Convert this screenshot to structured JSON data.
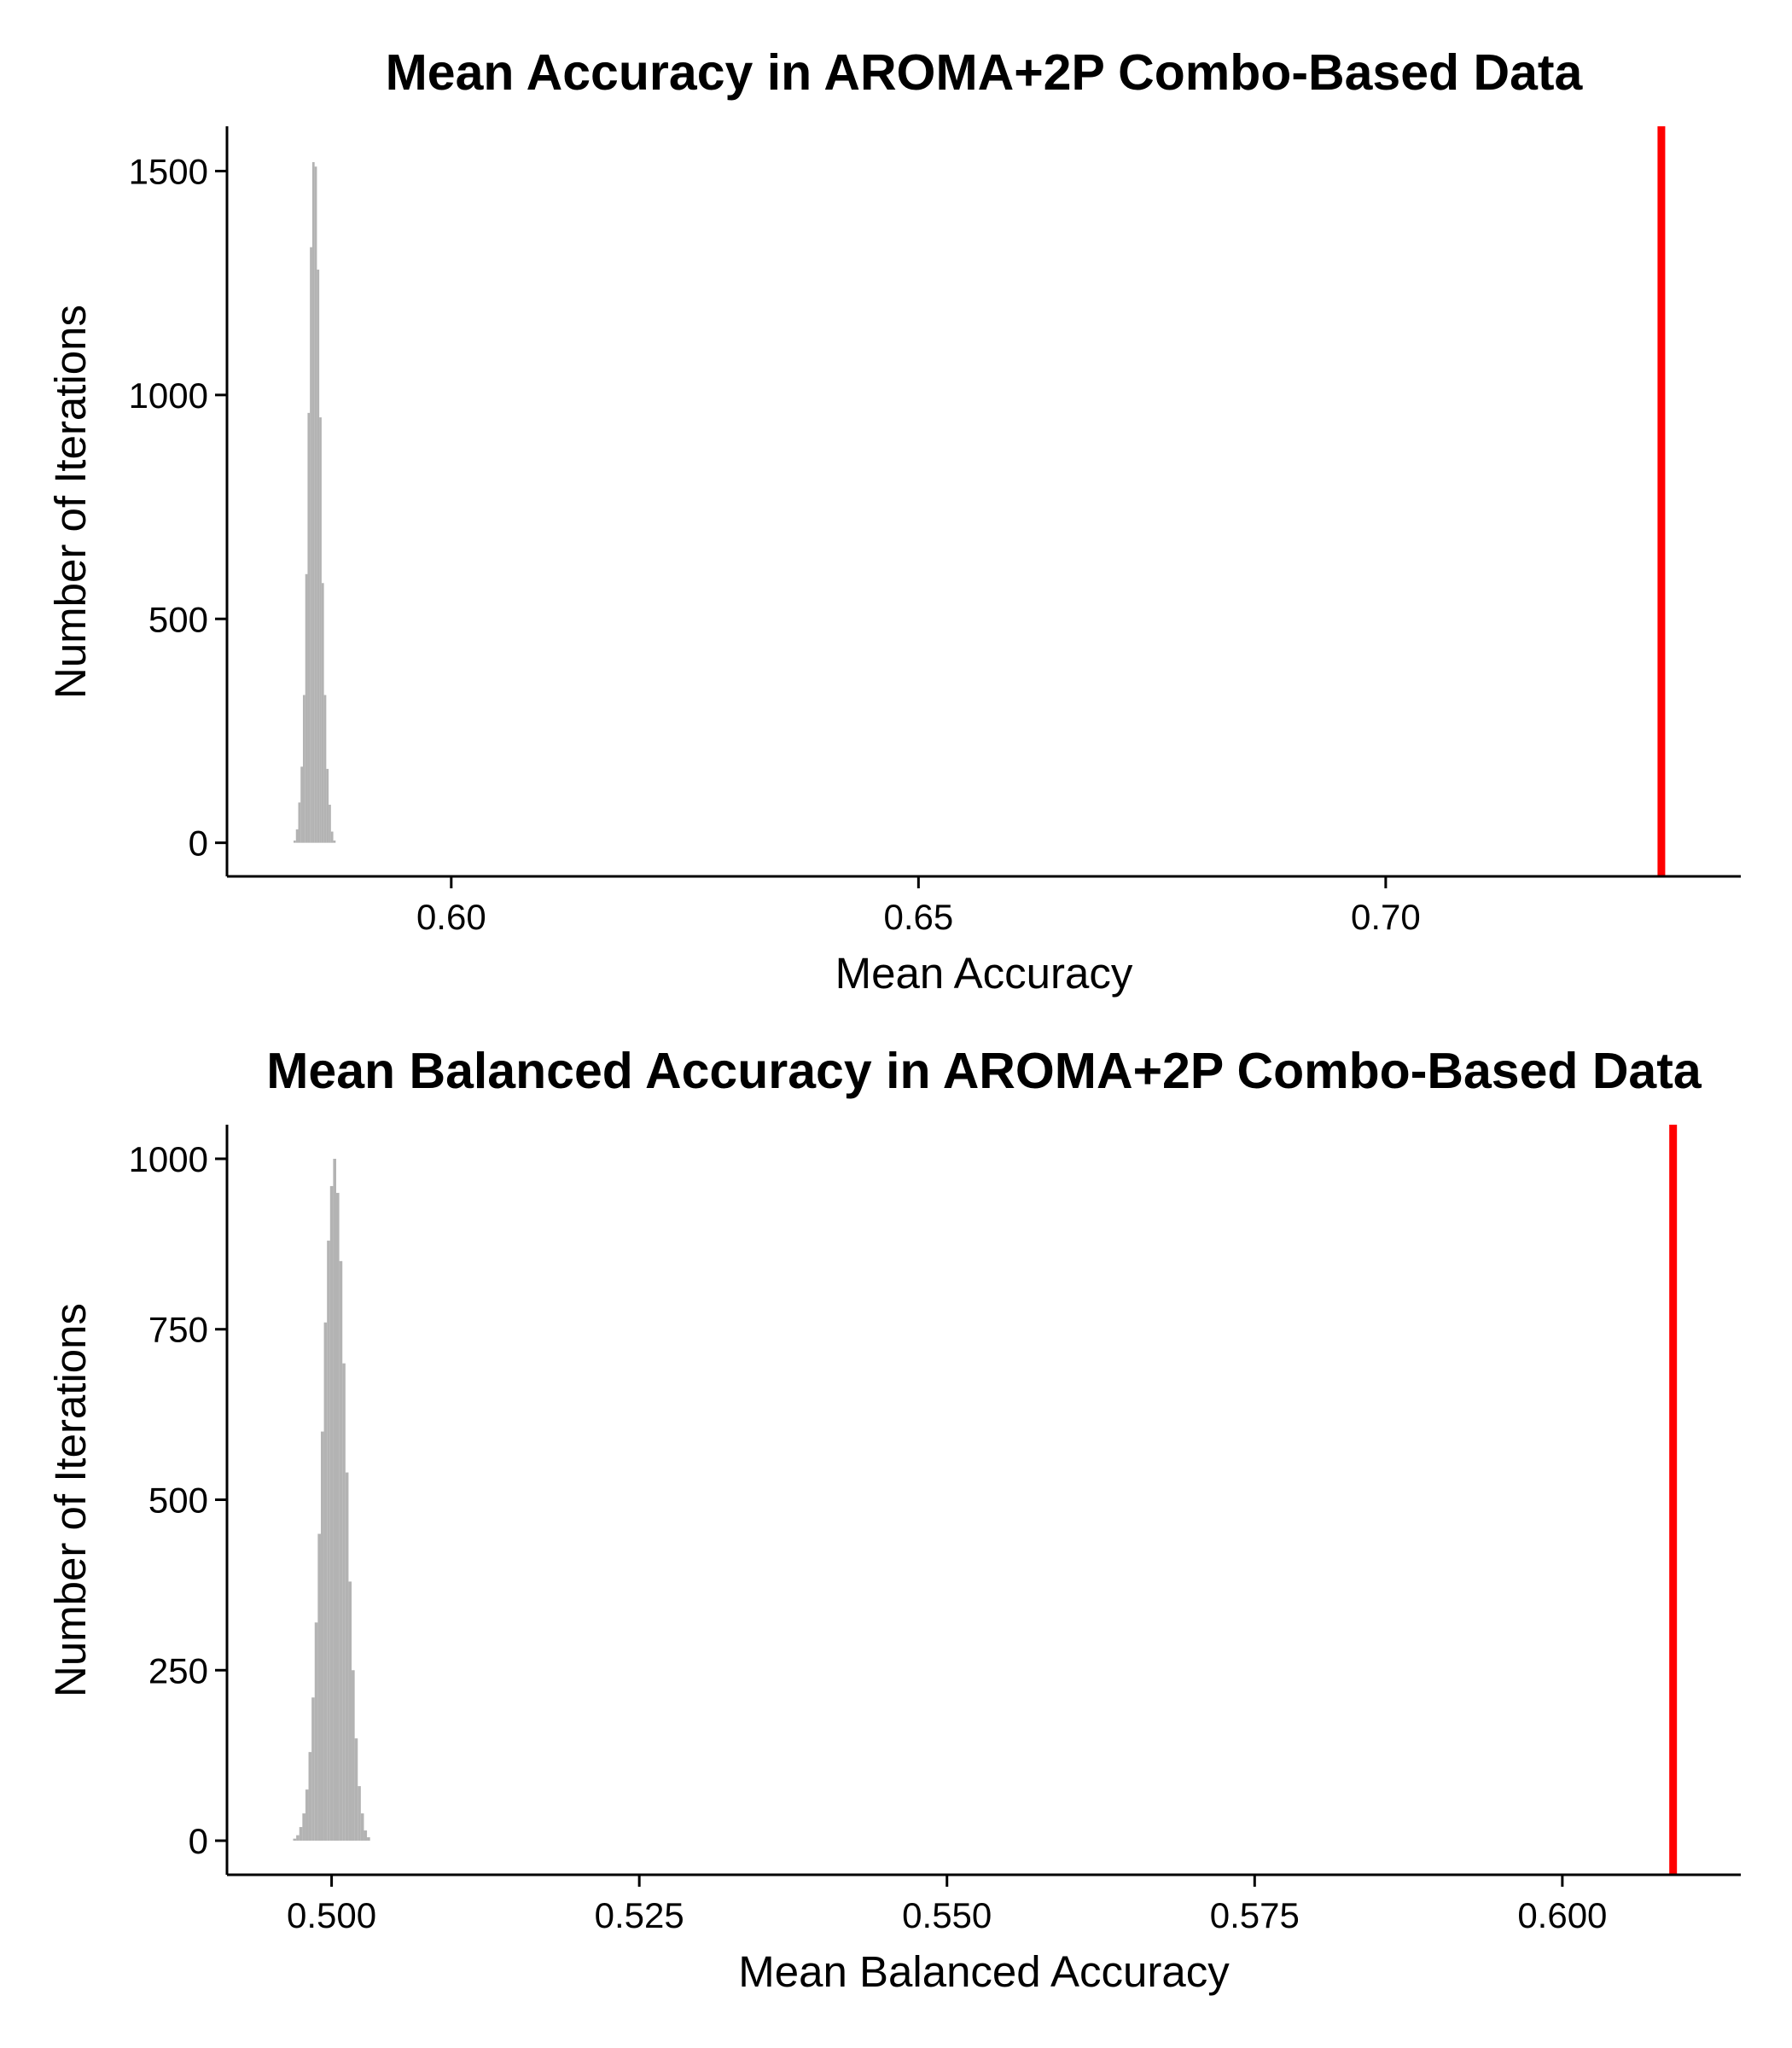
{
  "chart_data": [
    {
      "type": "bar",
      "title": "Mean Accuracy in AROMA+2P Combo-Based Data",
      "xlabel": "Mean Accuracy",
      "ylabel": "Number of Iterations",
      "xlim": [
        0.576,
        0.738
      ],
      "ylim": [
        -75,
        1600
      ],
      "x_ticks": [
        "0.60",
        "0.65",
        "0.70"
      ],
      "x_tick_values": [
        0.6,
        0.65,
        0.7
      ],
      "y_ticks": [
        "0",
        "500",
        "1000",
        "1500"
      ],
      "y_tick_values": [
        0,
        500,
        1000,
        1500
      ],
      "grid": false,
      "bin_width": 0.00025,
      "x": [
        0.58325,
        0.5835,
        0.58375,
        0.584,
        0.58425,
        0.5845,
        0.58475,
        0.585,
        0.58525,
        0.5855,
        0.58575,
        0.586,
        0.58625,
        0.5865,
        0.58675,
        0.587,
        0.58725,
        0.5875
      ],
      "values": [
        5,
        30,
        90,
        170,
        330,
        600,
        960,
        1330,
        1520,
        1510,
        1280,
        950,
        580,
        330,
        165,
        85,
        25,
        5
      ],
      "reference_line": {
        "value": 0.7295,
        "color": "#ff0000"
      },
      "bar_color": "#b3b3b3"
    },
    {
      "type": "bar",
      "title": "Mean Balanced Accuracy in AROMA+2P Combo-Based Data",
      "xlabel": "Mean Balanced Accuracy",
      "ylabel": "Number of Iterations",
      "xlim": [
        0.4915,
        0.6145
      ],
      "ylim": [
        -50,
        1050
      ],
      "x_ticks": [
        "0.500",
        "0.525",
        "0.550",
        "0.575",
        "0.600"
      ],
      "x_tick_values": [
        0.5,
        0.525,
        0.55,
        0.575,
        0.6
      ],
      "y_ticks": [
        "0",
        "250",
        "500",
        "750",
        "1000"
      ],
      "y_tick_values": [
        0,
        250,
        500,
        750,
        1000
      ],
      "grid": false,
      "bin_width": 0.00025,
      "x": [
        0.497,
        0.49725,
        0.4975,
        0.49775,
        0.498,
        0.49825,
        0.4985,
        0.49875,
        0.499,
        0.49925,
        0.4995,
        0.49975,
        0.5,
        0.50025,
        0.5005,
        0.50075,
        0.501,
        0.50125,
        0.5015,
        0.50175,
        0.502,
        0.50225,
        0.5025,
        0.50275,
        0.503
      ],
      "values": [
        3,
        8,
        20,
        40,
        75,
        130,
        210,
        320,
        450,
        600,
        760,
        880,
        960,
        1000,
        950,
        850,
        700,
        540,
        380,
        250,
        150,
        80,
        40,
        15,
        5
      ],
      "reference_line": {
        "value": 0.609,
        "color": "#ff0000"
      },
      "bar_color": "#b3b3b3"
    }
  ]
}
